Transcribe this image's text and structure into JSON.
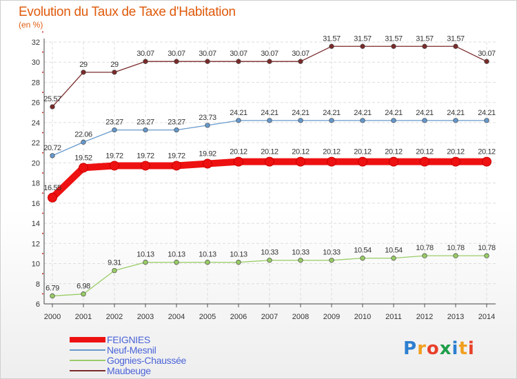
{
  "title": "Evolution du Taux de Taxe d'Habitation",
  "subtitle": "(en %)",
  "logo": {
    "text": "Proxiti",
    "colors": [
      "#2d7fd0",
      "#f0a020",
      "#e8402a",
      "#1f9e4a",
      "#2d7fd0",
      "#f0a020",
      "#e8402a"
    ]
  },
  "chart_data": {
    "type": "line",
    "title": "Evolution du Taux de Taxe d'Habitation",
    "ylabel": "(en %)",
    "xlabel": "",
    "ylim": [
      6,
      32
    ],
    "yticks": [
      6,
      8,
      10,
      12,
      14,
      16,
      18,
      20,
      22,
      24,
      26,
      28,
      30,
      32
    ],
    "grid": true,
    "legend_position": "bottom-left",
    "categories": [
      "2000",
      "2001",
      "2002",
      "2003",
      "2004",
      "2005",
      "2006",
      "2007",
      "2008",
      "2009",
      "2010",
      "2011",
      "2012",
      "2013",
      "2014"
    ],
    "series": [
      {
        "name": "Maubeuge",
        "color": "#7a2a2a",
        "weight": "thin",
        "values": [
          25.57,
          29,
          29,
          30.07,
          30.07,
          30.07,
          30.07,
          30.07,
          30.07,
          31.57,
          31.57,
          31.57,
          31.57,
          31.57,
          30.07
        ],
        "labels": [
          "25.57",
          "29",
          "29",
          "30.07",
          "30.07",
          "30.07",
          "30.07",
          "30.07",
          "30.07",
          "31.57",
          "31.57",
          "31.57",
          "31.57",
          "31.57",
          "30.07"
        ]
      },
      {
        "name": "Neuf-Mesnil",
        "color": "#6699cc",
        "weight": "thin",
        "values": [
          20.72,
          22.06,
          23.27,
          23.27,
          23.27,
          23.73,
          24.21,
          24.21,
          24.21,
          24.21,
          24.21,
          24.21,
          24.21,
          24.21,
          24.21
        ],
        "labels": [
          "20.72",
          "22.06",
          "23.27",
          "23.27",
          "23.27",
          "23.73",
          "24.21",
          "24.21",
          "24.21",
          "24.21",
          "24.21",
          "24.21",
          "24.21",
          "24.21",
          "24.21"
        ]
      },
      {
        "name": "FEIGNIES",
        "color": "#ee1111",
        "weight": "thick",
        "values": [
          16.55,
          19.52,
          19.72,
          19.72,
          19.72,
          19.92,
          20.12,
          20.12,
          20.12,
          20.12,
          20.12,
          20.12,
          20.12,
          20.12,
          20.12
        ],
        "labels": [
          "16.55",
          "19.52",
          "19.72",
          "19.72",
          "19.72",
          "19.92",
          "20.12",
          "20.12",
          "20.12",
          "20.12",
          "20.12",
          "20.12",
          "20.12",
          "20.12",
          "20.12"
        ]
      },
      {
        "name": "Gognies-Chaussée",
        "color": "#99cc66",
        "weight": "thin",
        "values": [
          6.79,
          6.98,
          9.31,
          10.13,
          10.13,
          10.13,
          10.13,
          10.33,
          10.33,
          10.33,
          10.54,
          10.54,
          10.78,
          10.78,
          10.78
        ],
        "labels": [
          "6.79",
          "6.98",
          "9.31",
          "10.13",
          "10.13",
          "10.13",
          "10.13",
          "10.33",
          "10.33",
          "10.33",
          "10.54",
          "10.54",
          "10.78",
          "10.78",
          "10.78"
        ]
      }
    ],
    "legend_order": [
      "FEIGNIES",
      "Neuf-Mesnil",
      "Gognies-Chaussée",
      "Maubeuge"
    ]
  }
}
